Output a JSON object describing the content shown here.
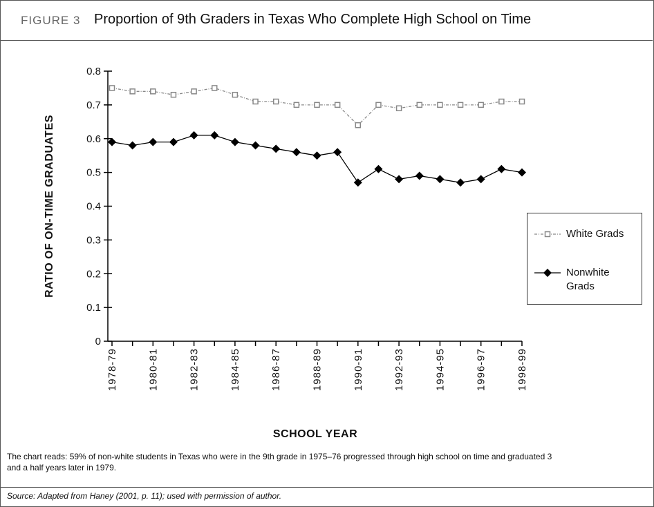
{
  "figure_label": "FIGURE 3",
  "chart_data": {
    "type": "line",
    "title": "Proportion of 9th Graders in Texas Who Complete High School on Time",
    "categories": [
      "1978-79",
      null,
      "1980-81",
      null,
      "1982-83",
      null,
      "1984-85",
      null,
      "1986-87",
      null,
      "1988-89",
      null,
      "1990-91",
      null,
      "1992-93",
      null,
      "1994-95",
      null,
      "1996-97",
      null,
      "1998-99"
    ],
    "series": [
      {
        "name": "White Grads",
        "color": "#888888",
        "marker": "square",
        "dashed": true,
        "values": [
          0.75,
          0.74,
          0.74,
          0.73,
          0.74,
          0.75,
          0.73,
          0.71,
          0.71,
          0.7,
          0.7,
          0.7,
          0.64,
          0.7,
          0.69,
          0.7,
          0.7,
          0.7,
          0.7,
          0.71,
          0.71
        ]
      },
      {
        "name": "Nonwhite Grads",
        "color": "#000000",
        "marker": "diamond",
        "dashed": false,
        "values": [
          0.59,
          0.58,
          0.59,
          0.59,
          0.61,
          0.61,
          0.59,
          0.58,
          0.57,
          0.56,
          0.55,
          0.56,
          0.47,
          0.51,
          0.48,
          0.49,
          0.48,
          0.47,
          0.48,
          0.51,
          0.5
        ]
      }
    ],
    "ylabel": "RATIO OF ON-TIME GRADUATES",
    "xlabel": "SCHOOL YEAR",
    "ylim": [
      0,
      0.8
    ],
    "yticks": [
      0,
      0.1,
      0.2,
      0.3,
      0.4,
      0.5,
      0.6,
      0.7,
      0.8
    ],
    "legend": "right"
  },
  "note": "The chart reads: 59% of non-white students in Texas who were in the 9th grade in 1975–76 progressed through high school on time and graduated 3 and a half years later in 1979.",
  "source": "Source: Adapted from Haney (2001, p. 11); used with permission of author."
}
